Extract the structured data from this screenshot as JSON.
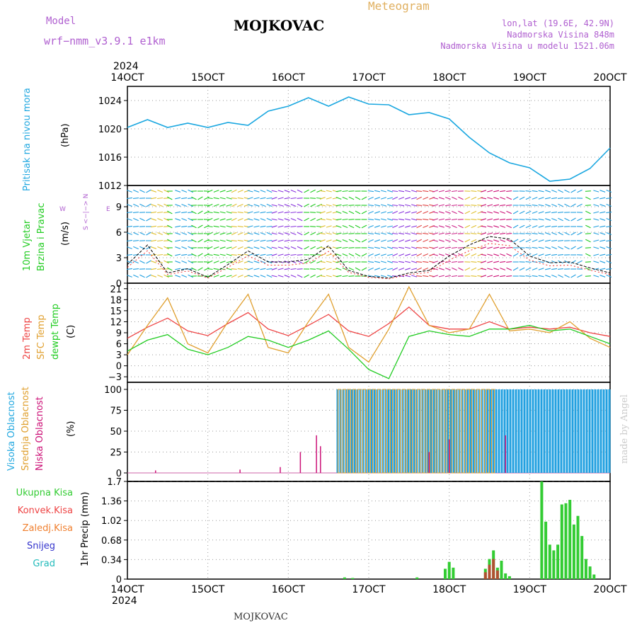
{
  "header": {
    "model_label": "Model",
    "model_name": "wrf−nmm_v3.9.1  e1km",
    "station": "MOJKOVAC",
    "product": "Meteogram",
    "lonlat": "lon,lat (19.6E, 42.9N)",
    "elevation": "Nadmorska Visina 848m",
    "model_elevation": "Nadmorska Visina u modelu 1521.06m",
    "footer_station": "MOJKOVAC",
    "watermark": "made by Angel"
  },
  "time_axis": {
    "year": "2024",
    "ticks": [
      "14OCT",
      "15OCT",
      "16OCT",
      "17OCT",
      "18OCT",
      "19OCT",
      "20OCT"
    ],
    "day_start": 14,
    "day_end": 20
  },
  "colors": {
    "pressure": "#1aa7e0",
    "temp2m": "#ee4444",
    "sfc_temp": "#e0a030",
    "dewpoint": "#22cc22",
    "high_cloud": "#22a0e0",
    "mid_cloud": "#e0a030",
    "low_cloud": "#cc1177",
    "total_precip": "#33cc33",
    "conv_precip": "#ee4444",
    "frozen_precip": "#f08030",
    "snow": "#3333cc",
    "graupel": "#22bbbb",
    "wind_speed": "#000000",
    "gust": "#ee3333"
  },
  "panels": {
    "pressure": {
      "ylabel": "Pritisak na nivou mora",
      "unit": "(hPa)",
      "yticks": [
        "1024",
        "1020",
        "1016",
        "1012"
      ]
    },
    "wind": {
      "ylabel_1": "10m Vjetar",
      "ylabel_2": "Brzina i Pravac",
      "unit": "(m/s)",
      "yticks": [
        "9",
        "6",
        "3",
        "0"
      ],
      "compass_ns": "S <−|−> N",
      "compass_w": "W",
      "compass_e": "E"
    },
    "temperature": {
      "ylabel_1": "2m Temp",
      "ylabel_2": "SFC Temp",
      "ylabel_3": "dewpt Temp",
      "unit": "(C)",
      "yticks": [
        "21",
        "18",
        "15",
        "12",
        "9",
        "6",
        "3",
        "0",
        "−3"
      ]
    },
    "cloud": {
      "ylabel_1": "Visoka Oblacnost",
      "ylabel_2": "Srednja Oblacnost",
      "ylabel_3": "Niska  Oblacnost",
      "unit": "(%)",
      "yticks": [
        "100",
        "75",
        "50",
        "25",
        "0"
      ]
    },
    "precip": {
      "ylabel": "1hr Precip (mm)",
      "yticks": [
        "1.7",
        "1.36",
        "1.02",
        "0.68",
        "0.34",
        "0"
      ],
      "legend": [
        "Ukupna  Kisa",
        "Konvek.Kisa",
        "Zaledj.Kisa",
        "Snijeg",
        "Grad"
      ]
    }
  },
  "chart_data": [
    {
      "type": "line",
      "title": "Pritisak na nivou mora",
      "ylabel": "(hPa)",
      "ylim": [
        1012,
        1026
      ],
      "x": [
        14.0,
        14.25,
        14.5,
        14.75,
        15.0,
        15.25,
        15.5,
        15.75,
        16.0,
        16.25,
        16.5,
        16.75,
        17.0,
        17.25,
        17.5,
        17.75,
        18.0,
        18.25,
        18.5,
        18.75,
        19.0,
        19.25,
        19.5,
        19.75,
        20.0
      ],
      "series": [
        {
          "values": [
            1020.2,
            1021.3,
            1020.2,
            1020.8,
            1020.2,
            1020.9,
            1020.5,
            1022.5,
            1023.2,
            1024.4,
            1023.2,
            1024.5,
            1023.5,
            1023.4,
            1022.0,
            1022.3,
            1021.4,
            1018.8,
            1016.6,
            1015.2,
            1014.5,
            1012.6,
            1012.9,
            1014.4,
            1017.3
          ]
        }
      ]
    },
    {
      "type": "line",
      "title": "10m Vjetar Brzina i Pravac",
      "ylabel": "(m/s)",
      "ylim": [
        0,
        11.5
      ],
      "x": [
        14.0,
        14.25,
        14.5,
        14.75,
        15.0,
        15.25,
        15.5,
        15.75,
        16.0,
        16.25,
        16.5,
        16.75,
        17.0,
        17.25,
        17.5,
        17.75,
        18.0,
        18.25,
        18.5,
        18.75,
        19.0,
        19.25,
        19.5,
        19.75,
        20.0
      ],
      "series": [
        {
          "values": [
            2.2,
            4.5,
            1.2,
            1.7,
            0.7,
            2.2,
            3.8,
            2.5,
            2.5,
            2.8,
            4.4,
            1.5,
            0.8,
            0.6,
            1.2,
            1.5,
            3.2,
            4.5,
            5.5,
            5.2,
            3.2,
            2.4,
            2.5,
            1.8,
            1.2
          ]
        }
      ]
    },
    {
      "type": "line",
      "title": "Temperature",
      "ylabel": "(C)",
      "ylim": [
        -4.5,
        22.5
      ],
      "x": [
        14.0,
        14.25,
        14.5,
        14.75,
        15.0,
        15.25,
        15.5,
        15.75,
        16.0,
        16.25,
        16.5,
        16.75,
        17.0,
        17.25,
        17.5,
        17.75,
        18.0,
        18.25,
        18.5,
        18.75,
        19.0,
        19.25,
        19.5,
        19.75,
        20.0
      ],
      "series": [
        {
          "name": "2m Temp",
          "values": [
            7.5,
            10.5,
            13.0,
            9.5,
            8.2,
            11.5,
            14.5,
            10.0,
            8.2,
            11.0,
            14.0,
            9.5,
            8.0,
            11.5,
            16.0,
            11.0,
            10.0,
            10.0,
            12.0,
            10.0,
            10.5,
            10.0,
            10.5,
            9.0,
            8.0
          ]
        },
        {
          "name": "SFC Temp",
          "values": [
            3.0,
            11.0,
            18.5,
            6.0,
            3.5,
            12.0,
            19.5,
            5.0,
            3.5,
            12.0,
            19.5,
            5.0,
            1.0,
            10.0,
            21.5,
            11.0,
            9.0,
            10.0,
            19.5,
            9.5,
            10.0,
            9.0,
            12.0,
            7.5,
            5.0
          ]
        },
        {
          "name": "dewpt Temp",
          "values": [
            4.0,
            7.0,
            8.5,
            4.5,
            3.0,
            5.0,
            8.0,
            7.0,
            5.0,
            7.0,
            9.5,
            4.5,
            -1.0,
            -3.5,
            8.0,
            9.5,
            8.5,
            8.0,
            10.0,
            10.0,
            11.0,
            9.5,
            10.0,
            8.0,
            6.0
          ]
        }
      ]
    },
    {
      "type": "bar",
      "title": "Oblacnost",
      "ylabel": "(%)",
      "ylim": [
        0,
        100
      ],
      "series": [
        {
          "name": "Visoka Oblacnost",
          "x_range": [
            16.6,
            20.0
          ],
          "values": [
            100
          ]
        },
        {
          "name": "Srednja Oblacnost",
          "x_range": [
            16.6,
            18.55
          ],
          "values": [
            100
          ]
        },
        {
          "name": "Niska  Oblacnost",
          "x": [
            14.35,
            15.4,
            15.9,
            16.15,
            16.35,
            16.4,
            17.75,
            18.0,
            18.7
          ],
          "values": [
            3,
            4,
            7,
            25,
            45,
            32,
            25,
            40,
            45
          ]
        }
      ]
    },
    {
      "type": "bar",
      "title": "1hr Precip",
      "ylabel": "(mm)",
      "ylim": [
        0,
        1.7
      ],
      "series": [
        {
          "name": "Ukupna  Kisa",
          "x": [
            16.7,
            16.8,
            17.6,
            17.95,
            18.0,
            18.05,
            18.45,
            18.5,
            18.55,
            18.6,
            18.65,
            18.7,
            18.75,
            19.15,
            19.2,
            19.25,
            19.3,
            19.35,
            19.4,
            19.45,
            19.5,
            19.55,
            19.6,
            19.65,
            19.7,
            19.75,
            19.8
          ],
          "values": [
            0.03,
            0.02,
            0.03,
            0.18,
            0.3,
            0.2,
            0.18,
            0.35,
            0.5,
            0.2,
            0.32,
            0.1,
            0.05,
            1.7,
            1.0,
            0.6,
            0.5,
            0.6,
            1.3,
            1.32,
            1.38,
            0.95,
            1.1,
            0.75,
            0.35,
            0.22,
            0.08
          ]
        },
        {
          "name": "Konvek.Kisa",
          "x": [
            18.45,
            18.5,
            18.55,
            18.6
          ],
          "values": [
            0.12,
            0.25,
            0.35,
            0.15
          ]
        },
        {
          "name": "Zaledj.Kisa",
          "values": []
        },
        {
          "name": "Snijeg",
          "values": []
        },
        {
          "name": "Grad",
          "values": []
        }
      ]
    }
  ]
}
